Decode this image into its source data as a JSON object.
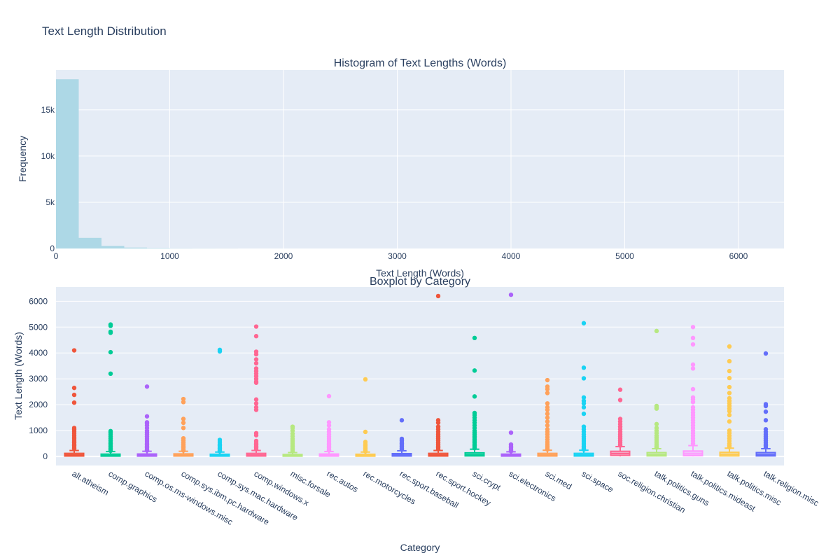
{
  "figure": {
    "title": "Text Length Distribution"
  },
  "chart_data": [
    {
      "type": "histogram",
      "title": "Histogram of Text Lengths (Words)",
      "xlabel": "Text Length (Words)",
      "ylabel": "Frequency",
      "xlim": [
        0,
        6400
      ],
      "ylim": [
        0,
        19300
      ],
      "xticks": [
        0,
        1000,
        2000,
        3000,
        4000,
        5000,
        6000
      ],
      "yticks": [
        0,
        5000,
        10000,
        15000
      ],
      "ytick_labels": [
        "0",
        "5k",
        "10k",
        "15k"
      ],
      "grid": true,
      "color": "#add8e6",
      "bin_width": 200,
      "bins": [
        {
          "x0": 0,
          "x1": 200,
          "count": 18300
        },
        {
          "x0": 200,
          "x1": 400,
          "count": 1150
        },
        {
          "x0": 400,
          "x1": 600,
          "count": 280
        },
        {
          "x0": 600,
          "x1": 800,
          "count": 100
        },
        {
          "x0": 800,
          "x1": 1000,
          "count": 45
        },
        {
          "x0": 1000,
          "x1": 1200,
          "count": 20
        },
        {
          "x0": 1200,
          "x1": 1400,
          "count": 12
        },
        {
          "x0": 1400,
          "x1": 1600,
          "count": 8
        }
      ]
    },
    {
      "type": "box",
      "title": "Boxplot by Category",
      "xlabel": "Category",
      "ylabel": "Text Length (Words)",
      "ylim": [
        -350,
        6550
      ],
      "yticks": [
        0,
        1000,
        2000,
        3000,
        4000,
        5000,
        6000
      ],
      "grid": true,
      "categories": [
        {
          "name": "alt.atheism",
          "color": "#EF553B",
          "q1": 15,
          "median": 55,
          "q3": 120,
          "whisker_low": 0,
          "whisker_high": 230,
          "outliers": [
            4100,
            2650,
            2380,
            2080,
            1100,
            1050,
            980,
            900,
            820,
            750,
            680,
            600,
            540,
            480,
            420,
            360,
            300
          ]
        },
        {
          "name": "comp.graphics",
          "color": "#00CC96",
          "q1": 12,
          "median": 40,
          "q3": 90,
          "whisker_low": 0,
          "whisker_high": 190,
          "outliers": [
            5100,
            5050,
            4820,
            4780,
            4030,
            3200,
            980,
            930,
            860,
            780,
            700,
            620,
            560,
            500,
            440,
            380,
            320,
            260,
            220
          ]
        },
        {
          "name": "comp.os.ms-windows.misc",
          "color": "#AB63FA",
          "q1": 12,
          "median": 42,
          "q3": 95,
          "whisker_low": 0,
          "whisker_high": 200,
          "outliers": [
            2700,
            1550,
            1320,
            1280,
            1200,
            1100,
            1000,
            920,
            840,
            760,
            680,
            600,
            520,
            460,
            400,
            340,
            280,
            230
          ]
        },
        {
          "name": "comp.sys.ibm.pc.hardware",
          "color": "#FFA15A",
          "q1": 15,
          "median": 48,
          "q3": 100,
          "whisker_low": 0,
          "whisker_high": 200,
          "outliers": [
            2220,
            2100,
            1450,
            1300,
            1100,
            700,
            620,
            540,
            470,
            400,
            340,
            280,
            230
          ]
        },
        {
          "name": "comp.sys.mac.hardware",
          "color": "#19D3F3",
          "q1": 12,
          "median": 42,
          "q3": 85,
          "whisker_low": 0,
          "whisker_high": 170,
          "outliers": [
            4120,
            4060,
            640,
            560,
            480,
            420,
            360,
            300,
            240,
            200
          ]
        },
        {
          "name": "comp.windows.x",
          "color": "#FF6692",
          "q1": 15,
          "median": 55,
          "q3": 120,
          "whisker_low": 0,
          "whisker_high": 230,
          "outliers": [
            5020,
            4650,
            4050,
            3950,
            3750,
            3600,
            3400,
            3300,
            3200,
            3100,
            3000,
            2900,
            2850,
            2200,
            2050,
            1900,
            1800,
            900,
            820,
            600,
            520,
            460,
            400,
            340,
            280
          ]
        },
        {
          "name": "misc.forsale",
          "color": "#B6E880",
          "q1": 10,
          "median": 35,
          "q3": 75,
          "whisker_low": 0,
          "whisker_high": 150,
          "outliers": [
            1150,
            1100,
            1000,
            880,
            780,
            680,
            600,
            520,
            440,
            380,
            320,
            260,
            200
          ]
        },
        {
          "name": "rec.autos",
          "color": "#FF97FF",
          "q1": 12,
          "median": 45,
          "q3": 95,
          "whisker_low": 0,
          "whisker_high": 190,
          "outliers": [
            2330,
            1320,
            1200,
            1050,
            950,
            850,
            760,
            680,
            600,
            520,
            460,
            400,
            340,
            280,
            230
          ]
        },
        {
          "name": "rec.motorcycles",
          "color": "#FECB52",
          "q1": 10,
          "median": 40,
          "q3": 85,
          "whisker_low": 0,
          "whisker_high": 170,
          "outliers": [
            2980,
            950,
            560,
            480,
            420,
            360,
            300,
            240,
            200
          ]
        },
        {
          "name": "rec.sport.baseball",
          "color": "#636EFA",
          "q1": 15,
          "median": 55,
          "q3": 110,
          "whisker_low": 0,
          "whisker_high": 220,
          "outliers": [
            1400,
            680,
            620,
            560,
            500,
            440,
            380,
            320,
            270
          ]
        },
        {
          "name": "rec.sport.hockey",
          "color": "#EF553B",
          "q1": 15,
          "median": 55,
          "q3": 120,
          "whisker_low": 0,
          "whisker_high": 230,
          "outliers": [
            6200,
            1400,
            1300,
            1150,
            1050,
            950,
            860,
            780,
            700,
            620,
            540,
            470,
            400,
            340,
            280
          ]
        },
        {
          "name": "sci.crypt",
          "color": "#00CC96",
          "q1": 20,
          "median": 65,
          "q3": 140,
          "whisker_low": 0,
          "whisker_high": 280,
          "outliers": [
            4580,
            3320,
            2320,
            1680,
            1600,
            1500,
            1400,
            1300,
            1200,
            1100,
            1000,
            920,
            850,
            780,
            720,
            660,
            600,
            540,
            480,
            420,
            360,
            320
          ]
        },
        {
          "name": "sci.electronics",
          "color": "#AB63FA",
          "q1": 12,
          "median": 42,
          "q3": 90,
          "whisker_low": 0,
          "whisker_high": 180,
          "outliers": [
            6250,
            920,
            460,
            400,
            340,
            290,
            240,
            200
          ]
        },
        {
          "name": "sci.med",
          "color": "#FFA15A",
          "q1": 15,
          "median": 55,
          "q3": 120,
          "whisker_low": 0,
          "whisker_high": 240,
          "outliers": [
            2950,
            2700,
            2600,
            2450,
            2050,
            1900,
            1800,
            1650,
            1500,
            1350,
            1200,
            1050,
            950,
            850,
            750,
            650,
            560,
            480,
            400,
            330,
            270
          ]
        },
        {
          "name": "sci.space",
          "color": "#19D3F3",
          "q1": 15,
          "median": 55,
          "q3": 120,
          "whisker_low": 0,
          "whisker_high": 240,
          "outliers": [
            5150,
            3430,
            3020,
            2280,
            2150,
            2050,
            1900,
            1650,
            1150,
            1050,
            950,
            850,
            760,
            680,
            600,
            520,
            450,
            380,
            320,
            270
          ]
        },
        {
          "name": "soc.religion.christian",
          "color": "#FF6692",
          "q1": 40,
          "median": 110,
          "q3": 200,
          "whisker_low": 0,
          "whisker_high": 380,
          "outliers": [
            2580,
            2180,
            1450,
            1350,
            1250,
            1150,
            1050,
            950,
            860,
            780,
            700,
            620,
            550,
            480,
            420
          ]
        },
        {
          "name": "talk.politics.guns",
          "color": "#B6E880",
          "q1": 20,
          "median": 70,
          "q3": 150,
          "whisker_low": 0,
          "whisker_high": 300,
          "outliers": [
            4850,
            1950,
            1900,
            1850,
            1250,
            1100,
            1000,
            900,
            800,
            720,
            640,
            560,
            480,
            400,
            340
          ]
        },
        {
          "name": "talk.politics.mideast",
          "color": "#FF97FF",
          "q1": 30,
          "median": 100,
          "q3": 210,
          "whisker_low": 0,
          "whisker_high": 420,
          "outliers": [
            5000,
            4580,
            4330,
            3550,
            3400,
            2600,
            2280,
            2200,
            2100,
            1900,
            1800,
            1700,
            1600,
            1500,
            1400,
            1300,
            1200,
            1100,
            1000,
            900,
            800,
            700,
            600,
            500
          ]
        },
        {
          "name": "talk.politics.misc",
          "color": "#FECB52",
          "q1": 20,
          "median": 75,
          "q3": 160,
          "whisker_low": 0,
          "whisker_high": 320,
          "outliers": [
            4250,
            3680,
            3300,
            3030,
            2680,
            2450,
            2250,
            2150,
            2050,
            1950,
            1850,
            1750,
            1600,
            1350,
            1000,
            900,
            800,
            700,
            600,
            500,
            420,
            360
          ]
        },
        {
          "name": "talk.religion.misc",
          "color": "#636EFA",
          "q1": 20,
          "median": 70,
          "q3": 150,
          "whisker_low": 0,
          "whisker_high": 300,
          "outliers": [
            3980,
            2020,
            1950,
            1730,
            1400,
            1050,
            950,
            860,
            780,
            700,
            620,
            550,
            480,
            420,
            360
          ]
        }
      ]
    }
  ]
}
